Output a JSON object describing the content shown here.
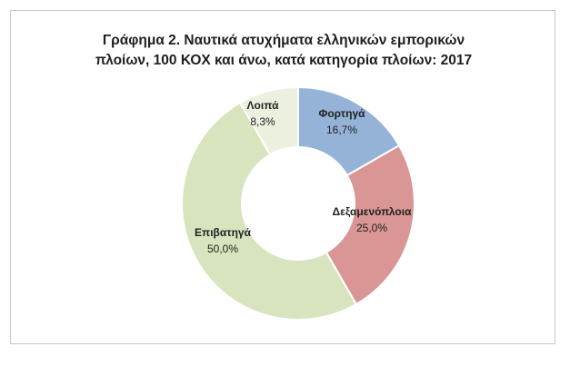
{
  "chart_data": {
    "type": "pie",
    "title_lines": [
      "Γράφημα 2. Ναυτικά ατυχήματα ελληνικών εμπορικών",
      "πλοίων, 100 ΚΟΧ και άνω, κατά κατηγορία πλοίων: 2017"
    ],
    "slices": [
      {
        "label": "Φορτηγά",
        "value": 16.7,
        "value_text": "16,7%",
        "color": "#95b3d7"
      },
      {
        "label": "Δεξαμενόπλοια",
        "value": 25.0,
        "value_text": "25,0%",
        "color": "#d99694"
      },
      {
        "label": "Επιβατηγά",
        "value": 50.0,
        "value_text": "50,0%",
        "color": "#d7e4bd"
      },
      {
        "label": "Λοιπά",
        "value": 8.3,
        "value_text": "8,3%",
        "color": "#ebf1de"
      }
    ],
    "legend": "none",
    "hole": "donut"
  }
}
